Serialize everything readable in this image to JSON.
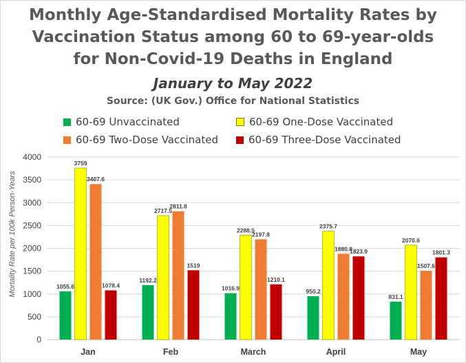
{
  "header": {
    "title_line1": "Monthly Age-Standardised Mortality Rates by",
    "title_line2": "Vaccination Status among 60 to 69-year-olds",
    "title_line3": "for Non-Covid-19 Deaths in England",
    "subtitle": "January to May 2022",
    "source": "Source: (UK Gov.) Office for National Statistics"
  },
  "chart_data": {
    "type": "bar",
    "title": "Monthly Age-Standardised Mortality Rates by Vaccination Status among 60 to 69-year-olds for Non-Covid-19 Deaths in England",
    "subtitle": "January to May 2022",
    "xlabel": "",
    "ylabel": "Mortality Rate per 100k Person-Years",
    "ylim": [
      0,
      4000
    ],
    "yticks": [
      0,
      500,
      1000,
      1500,
      2000,
      2500,
      3000,
      3500,
      4000
    ],
    "grid": true,
    "legend_position": "top",
    "categories": [
      "Jan",
      "Feb",
      "March",
      "April",
      "May"
    ],
    "series": [
      {
        "name": "60-69 Unvaccinated",
        "color": "#00b050",
        "values": [
          1055.6,
          1192.2,
          1016.9,
          950.2,
          831.1
        ]
      },
      {
        "name": "60-69 One-Dose Vaccinated",
        "color": "#ffff00",
        "values": [
          3759,
          2717.5,
          2288.5,
          2375.7,
          2070.6
        ]
      },
      {
        "name": "60-69 Two-Dose Vaccinated",
        "color": "#ed7d31",
        "values": [
          3407.6,
          2811.8,
          2197.8,
          1880.8,
          1507.6
        ]
      },
      {
        "name": "60-69 Three-Dose Vaccinated",
        "color": "#c00000",
        "values": [
          1078.4,
          1519,
          1210.1,
          1823.9,
          1801.3
        ]
      }
    ]
  }
}
